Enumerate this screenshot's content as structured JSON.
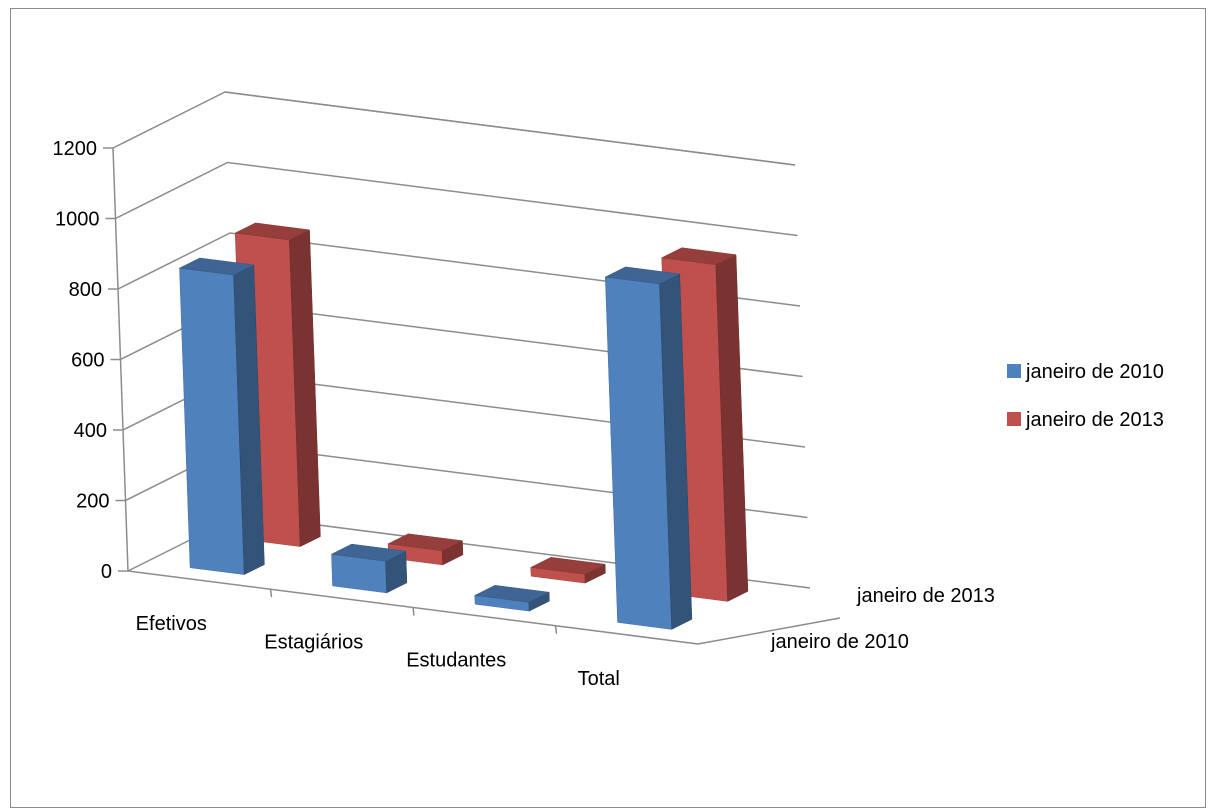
{
  "chart_data": {
    "type": "bar",
    "subtype": "3d-column",
    "categories": [
      "Efetivos",
      "Estagiários",
      "Estudantes",
      "Total"
    ],
    "series": [
      {
        "name": "janeiro de 2010",
        "values": [
          850,
          90,
          25,
          980
        ],
        "color": "#4f81bd"
      },
      {
        "name": "janeiro de 2013",
        "values": [
          870,
          40,
          25,
          955
        ],
        "color": "#c0504d"
      }
    ],
    "depth_labels": [
      "janeiro de 2010",
      "janeiro de 2013"
    ],
    "y_ticks": [
      "0",
      "200",
      "400",
      "600",
      "800",
      "1000",
      "1200"
    ],
    "ylim": [
      0,
      1200
    ],
    "grid": true,
    "legend": "right",
    "title": "",
    "xlabel": "",
    "ylabel": ""
  }
}
